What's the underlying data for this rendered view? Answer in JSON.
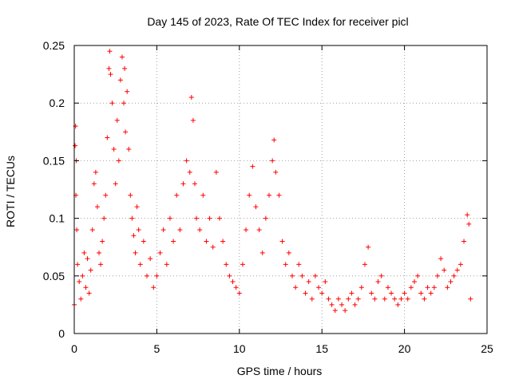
{
  "chart_data": {
    "type": "scatter",
    "title": "Day 145 of 2023, Rate Of TEC Index for receiver picl",
    "xlabel": "GPS time / hours",
    "ylabel": "ROTI / TECUs",
    "xlim": [
      0,
      25
    ],
    "ylim": [
      0,
      0.25
    ],
    "xticks": [
      0,
      5,
      10,
      15,
      20,
      25
    ],
    "xtick_labels": [
      "0",
      "5",
      "10",
      "15",
      "20",
      "25"
    ],
    "yticks": [
      0,
      0.05,
      0.1,
      0.15,
      0.2,
      0.25
    ],
    "ytick_labels": [
      "0",
      "0.05",
      "0.1",
      "0.15",
      "0.2",
      "0.25"
    ],
    "grid": true,
    "marker": "plus",
    "color": "#ff0000",
    "series": [
      {
        "values": [
          [
            0.0,
            0.025
          ],
          [
            0.05,
            0.163
          ],
          [
            0.08,
            0.18
          ],
          [
            0.1,
            0.12
          ],
          [
            0.12,
            0.15
          ],
          [
            0.15,
            0.09
          ],
          [
            0.2,
            0.06
          ],
          [
            0.3,
            0.045
          ],
          [
            0.4,
            0.03
          ],
          [
            0.5,
            0.05
          ],
          [
            0.6,
            0.07
          ],
          [
            0.7,
            0.04
          ],
          [
            0.8,
            0.065
          ],
          [
            0.9,
            0.035
          ],
          [
            1.0,
            0.055
          ],
          [
            1.1,
            0.09
          ],
          [
            1.2,
            0.13
          ],
          [
            1.3,
            0.14
          ],
          [
            1.4,
            0.11
          ],
          [
            1.5,
            0.07
          ],
          [
            1.6,
            0.06
          ],
          [
            1.7,
            0.08
          ],
          [
            1.8,
            0.1
          ],
          [
            1.9,
            0.12
          ],
          [
            2.0,
            0.17
          ],
          [
            2.1,
            0.23
          ],
          [
            2.15,
            0.245
          ],
          [
            2.2,
            0.225
          ],
          [
            2.3,
            0.2
          ],
          [
            2.4,
            0.16
          ],
          [
            2.5,
            0.13
          ],
          [
            2.6,
            0.185
          ],
          [
            2.7,
            0.15
          ],
          [
            2.8,
            0.22
          ],
          [
            2.9,
            0.24
          ],
          [
            3.0,
            0.2
          ],
          [
            3.05,
            0.23
          ],
          [
            3.1,
            0.175
          ],
          [
            3.2,
            0.21
          ],
          [
            3.3,
            0.16
          ],
          [
            3.4,
            0.12
          ],
          [
            3.5,
            0.1
          ],
          [
            3.6,
            0.085
          ],
          [
            3.7,
            0.07
          ],
          [
            3.8,
            0.11
          ],
          [
            3.9,
            0.09
          ],
          [
            4.0,
            0.06
          ],
          [
            4.2,
            0.08
          ],
          [
            4.4,
            0.05
          ],
          [
            4.6,
            0.065
          ],
          [
            4.8,
            0.04
          ],
          [
            5.0,
            0.05
          ],
          [
            5.2,
            0.07
          ],
          [
            5.4,
            0.09
          ],
          [
            5.6,
            0.06
          ],
          [
            5.8,
            0.1
          ],
          [
            6.0,
            0.08
          ],
          [
            6.2,
            0.12
          ],
          [
            6.4,
            0.09
          ],
          [
            6.6,
            0.13
          ],
          [
            6.8,
            0.15
          ],
          [
            7.0,
            0.14
          ],
          [
            7.1,
            0.205
          ],
          [
            7.2,
            0.185
          ],
          [
            7.3,
            0.13
          ],
          [
            7.4,
            0.1
          ],
          [
            7.6,
            0.09
          ],
          [
            7.8,
            0.12
          ],
          [
            8.0,
            0.08
          ],
          [
            8.2,
            0.1
          ],
          [
            8.4,
            0.075
          ],
          [
            8.6,
            0.14
          ],
          [
            8.8,
            0.1
          ],
          [
            9.0,
            0.08
          ],
          [
            9.2,
            0.06
          ],
          [
            9.4,
            0.05
          ],
          [
            9.6,
            0.045
          ],
          [
            9.8,
            0.04
          ],
          [
            10.0,
            0.035
          ],
          [
            10.2,
            0.06
          ],
          [
            10.4,
            0.09
          ],
          [
            10.6,
            0.12
          ],
          [
            10.8,
            0.145
          ],
          [
            11.0,
            0.11
          ],
          [
            11.2,
            0.09
          ],
          [
            11.4,
            0.07
          ],
          [
            11.6,
            0.1
          ],
          [
            11.8,
            0.12
          ],
          [
            12.0,
            0.15
          ],
          [
            12.1,
            0.168
          ],
          [
            12.2,
            0.14
          ],
          [
            12.4,
            0.12
          ],
          [
            12.6,
            0.08
          ],
          [
            12.8,
            0.06
          ],
          [
            13.0,
            0.07
          ],
          [
            13.2,
            0.05
          ],
          [
            13.4,
            0.04
          ],
          [
            13.6,
            0.06
          ],
          [
            13.8,
            0.05
          ],
          [
            14.0,
            0.035
          ],
          [
            14.2,
            0.045
          ],
          [
            14.4,
            0.03
          ],
          [
            14.6,
            0.05
          ],
          [
            14.8,
            0.04
          ],
          [
            15.0,
            0.035
          ],
          [
            15.2,
            0.045
          ],
          [
            15.4,
            0.03
          ],
          [
            15.6,
            0.025
          ],
          [
            15.8,
            0.02
          ],
          [
            16.0,
            0.03
          ],
          [
            16.2,
            0.025
          ],
          [
            16.4,
            0.02
          ],
          [
            16.6,
            0.03
          ],
          [
            16.8,
            0.035
          ],
          [
            17.0,
            0.025
          ],
          [
            17.2,
            0.03
          ],
          [
            17.4,
            0.04
          ],
          [
            17.6,
            0.06
          ],
          [
            17.8,
            0.075
          ],
          [
            18.0,
            0.035
          ],
          [
            18.2,
            0.03
          ],
          [
            18.4,
            0.045
          ],
          [
            18.6,
            0.05
          ],
          [
            18.8,
            0.03
          ],
          [
            19.0,
            0.04
          ],
          [
            19.2,
            0.035
          ],
          [
            19.4,
            0.03
          ],
          [
            19.6,
            0.025
          ],
          [
            19.8,
            0.03
          ],
          [
            20.0,
            0.035
          ],
          [
            20.2,
            0.03
          ],
          [
            20.4,
            0.04
          ],
          [
            20.6,
            0.045
          ],
          [
            20.8,
            0.05
          ],
          [
            21.0,
            0.035
          ],
          [
            21.2,
            0.03
          ],
          [
            21.4,
            0.04
          ],
          [
            21.6,
            0.035
          ],
          [
            21.8,
            0.04
          ],
          [
            22.0,
            0.05
          ],
          [
            22.2,
            0.065
          ],
          [
            22.4,
            0.055
          ],
          [
            22.6,
            0.04
          ],
          [
            22.8,
            0.045
          ],
          [
            23.0,
            0.05
          ],
          [
            23.2,
            0.055
          ],
          [
            23.4,
            0.06
          ],
          [
            23.6,
            0.08
          ],
          [
            23.8,
            0.103
          ],
          [
            23.9,
            0.095
          ],
          [
            24.0,
            0.03
          ]
        ]
      }
    ]
  }
}
